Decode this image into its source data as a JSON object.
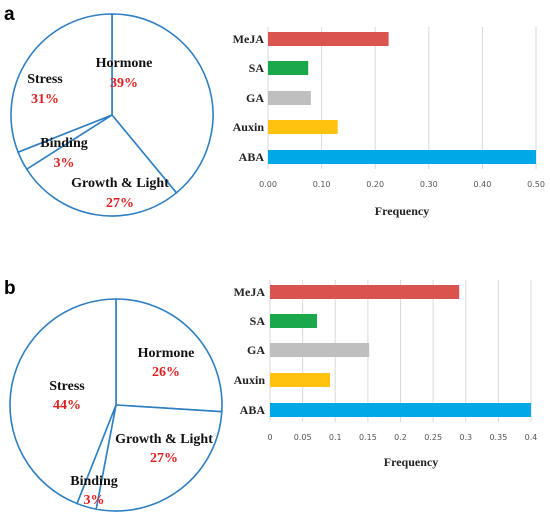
{
  "chart_data": [
    {
      "panel": "a",
      "type": "pie",
      "slices": [
        {
          "label": "Hormone",
          "pct_label": "39%",
          "value": 39
        },
        {
          "label": "Growth & Light",
          "pct_label": "27%",
          "value": 27
        },
        {
          "label": "Binding",
          "pct_label": "3%",
          "value": 3
        },
        {
          "label": "Stress",
          "pct_label": "31%",
          "value": 31
        }
      ],
      "colors": {
        "stroke": "#2f7fc1",
        "label": "#111111",
        "percent": "#e02020"
      }
    },
    {
      "panel": "a",
      "type": "bar",
      "orientation": "horizontal",
      "categories": [
        "MeJA",
        "SA",
        "GA",
        "Auxin",
        "ABA"
      ],
      "values": [
        0.225,
        0.075,
        0.08,
        0.13,
        0.5
      ],
      "colors": [
        "#d9534f",
        "#1aa84a",
        "#bfbfbf",
        "#ffc20e",
        "#00a8e8"
      ],
      "xlabel": "Frequency",
      "xlim": [
        0,
        0.5
      ],
      "xticks": [
        "0.00",
        "0.10",
        "0.20",
        "0.30",
        "0.40",
        "0.50"
      ],
      "grid": true
    },
    {
      "panel": "b",
      "type": "pie",
      "slices": [
        {
          "label": "Hormone",
          "pct_label": "26%",
          "value": 26
        },
        {
          "label": "Growth & Light",
          "pct_label": "27%",
          "value": 27
        },
        {
          "label": "Binding",
          "pct_label": "3%",
          "value": 3
        },
        {
          "label": "Stress",
          "pct_label": "44%",
          "value": 44
        }
      ],
      "colors": {
        "stroke": "#2f7fc1",
        "label": "#111111",
        "percent": "#e02020"
      }
    },
    {
      "panel": "b",
      "type": "bar",
      "orientation": "horizontal",
      "categories": [
        "MeJA",
        "SA",
        "GA",
        "Auxin",
        "ABA"
      ],
      "values": [
        0.29,
        0.072,
        0.152,
        0.092,
        0.4
      ],
      "colors": [
        "#d9534f",
        "#1aa84a",
        "#bfbfbf",
        "#ffc20e",
        "#00a8e8"
      ],
      "xlabel": "Frequency",
      "xlim": [
        0,
        0.4
      ],
      "xticks": [
        "0",
        "0.05",
        "0.1",
        "0.15",
        "0.2",
        "0.25",
        "0.3",
        "0.35",
        "0.4"
      ],
      "grid": true
    }
  ]
}
